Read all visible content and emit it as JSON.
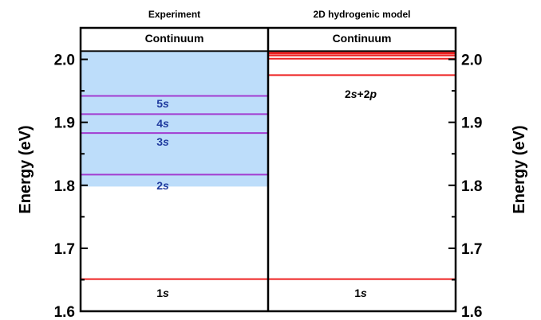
{
  "chart_data": {
    "type": "energy-level",
    "ylabel": "Energy (eV)",
    "ylim": [
      1.6,
      2.05
    ],
    "yticks": [
      1.6,
      1.7,
      1.8,
      1.9,
      2.0
    ],
    "ytick_labels": [
      "1.6",
      "1.7",
      "1.8",
      "1.9",
      "2.0"
    ],
    "panels": [
      {
        "title": "Experiment",
        "continuum_label": "Continuum",
        "shaded_region": {
          "from": 1.798,
          "to": 2.013,
          "color": "#bdddfa"
        },
        "levels": [
          {
            "label": "1s",
            "energy": 1.651,
            "color": "#ee2222",
            "label_color": "#000000"
          },
          {
            "label": "2s",
            "energy": 1.817,
            "color": "#a23bd0",
            "label_color": "#1f3a9e"
          },
          {
            "label": "3s",
            "energy": 1.883,
            "color": "#a23bd0",
            "label_color": "#1f3a9e"
          },
          {
            "label": "4s",
            "energy": 1.913,
            "color": "#a23bd0",
            "label_color": "#1f3a9e"
          },
          {
            "label": "5s",
            "energy": 1.942,
            "color": "#a23bd0",
            "label_color": "#1f3a9e"
          }
        ]
      },
      {
        "title": "2D hydrogenic model",
        "continuum_label": "Continuum",
        "levels": [
          {
            "label": "1s",
            "energy": 1.651,
            "color": "#ee2222",
            "label_color": "#000000"
          },
          {
            "label": "2s+2p",
            "energy": 1.975,
            "color": "#ee2222",
            "label_color": "#000000"
          },
          {
            "label": "",
            "energy": 2.001,
            "color": "#ee2222"
          },
          {
            "label": "",
            "energy": 2.006,
            "color": "#ee2222"
          },
          {
            "label": "",
            "energy": 2.009,
            "color": "#ee2222"
          },
          {
            "label": "",
            "energy": 2.011,
            "color": "#ee2222"
          },
          {
            "label": "",
            "energy": 2.013,
            "color": "#111111"
          }
        ]
      }
    ]
  }
}
